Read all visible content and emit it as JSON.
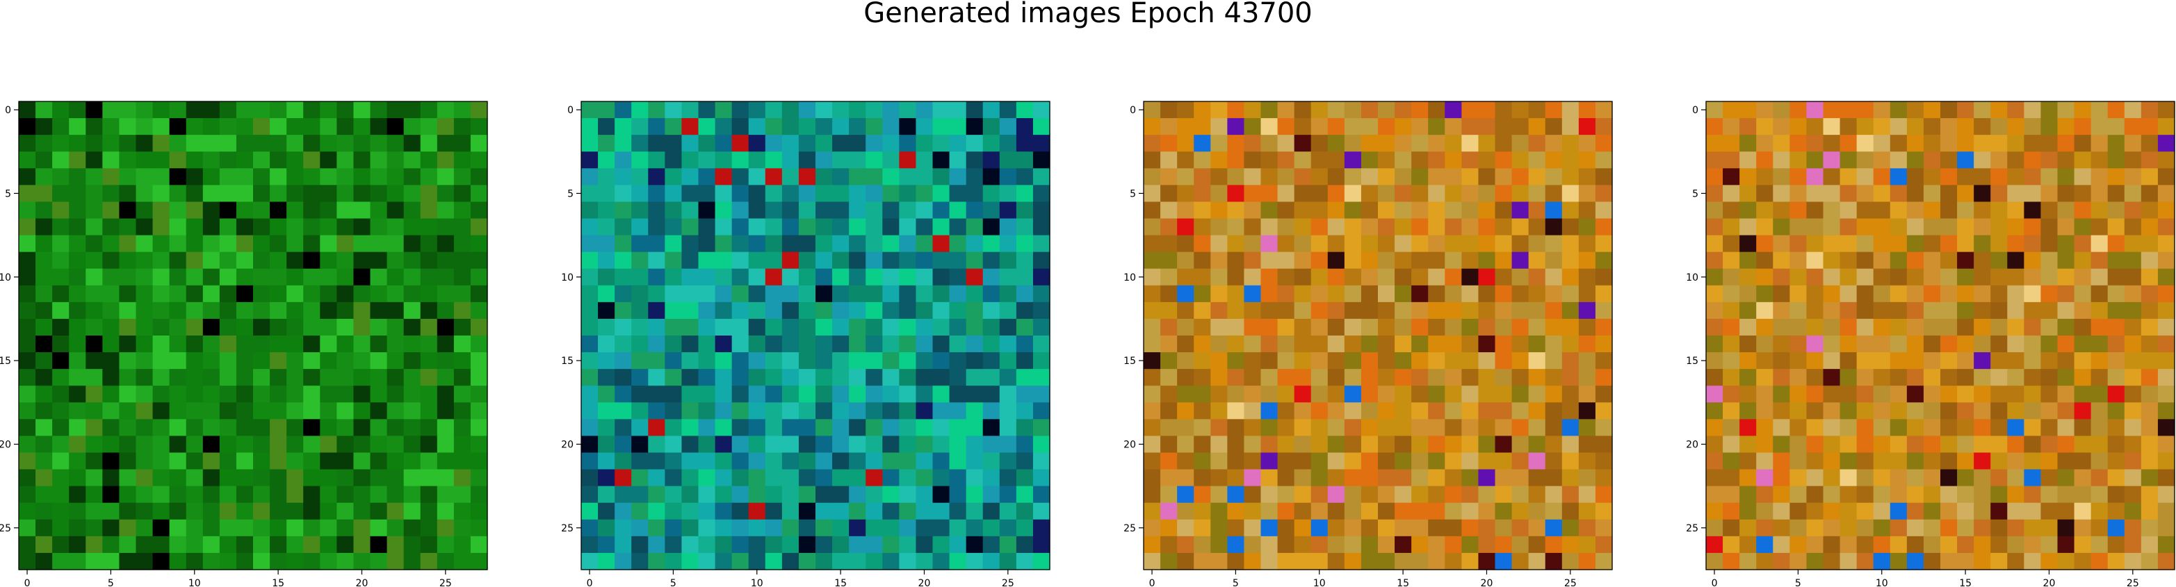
{
  "figure": {
    "title": "Generated images Epoch 43700"
  },
  "chart_data": [
    {
      "type": "heatmap",
      "title": "",
      "grid_size": 28,
      "palette": "green",
      "xlim": [
        -0.5,
        27.5
      ],
      "ylim": [
        27.5,
        -0.5
      ],
      "xticks": [
        0,
        5,
        10,
        15,
        20,
        25
      ],
      "yticks": [
        0,
        5,
        10,
        15,
        20,
        25
      ],
      "grid": false
    },
    {
      "type": "heatmap",
      "title": "",
      "grid_size": 28,
      "palette": "teal",
      "xlim": [
        -0.5,
        27.5
      ],
      "ylim": [
        27.5,
        -0.5
      ],
      "xticks": [
        0,
        5,
        10,
        15,
        20,
        25
      ],
      "yticks": [
        0,
        5,
        10,
        15,
        20,
        25
      ],
      "grid": false
    },
    {
      "type": "heatmap",
      "title": "",
      "grid_size": 28,
      "palette": "orange",
      "xlim": [
        -0.5,
        27.5
      ],
      "ylim": [
        27.5,
        -0.5
      ],
      "xticks": [
        0,
        5,
        10,
        15,
        20,
        25
      ],
      "yticks": [
        0,
        5,
        10,
        15,
        20,
        25
      ],
      "grid": false
    },
    {
      "type": "heatmap",
      "title": "",
      "grid_size": 28,
      "palette": "orange",
      "xlim": [
        -0.5,
        27.5
      ],
      "ylim": [
        27.5,
        -0.5
      ],
      "xticks": [
        0,
        5,
        10,
        15,
        20,
        25
      ],
      "yticks": [
        0,
        5,
        10,
        15,
        20,
        25
      ],
      "grid": false
    }
  ],
  "palettes": {
    "green": [
      "#0a5a0a",
      "#0f7a0f",
      "#128a12",
      "#1a9a1a",
      "#0c6a0c",
      "#22aa22",
      "#063a06",
      "#2cc02c",
      "#4a8a1a",
      "#0d800d",
      "#168e16"
    ],
    "teal": [
      "#0a8a6a",
      "#0aa07a",
      "#12b090",
      "#0a7a7a",
      "#1a9ab0",
      "#0a5a6a",
      "#20c0b0",
      "#0a6a8a",
      "#1aa060",
      "#0acf8a",
      "#0a4a5a",
      "#12aaaa"
    ],
    "orange": [
      "#c89010",
      "#d88a08",
      "#b87a10",
      "#e0a020",
      "#a86a10",
      "#c87020",
      "#d09030",
      "#8a7a10",
      "#e07010",
      "#b89030",
      "#c0a040",
      "#d0b060",
      "#9a6010"
    ],
    "accents_teal": [
      "#000820",
      "#c01010",
      "#101a60"
    ],
    "accents_orange": [
      "#6010b0",
      "#1070e0",
      "#e01010",
      "#2a0a0a",
      "#e070c0",
      "#f0d080",
      "#500a0a"
    ]
  }
}
